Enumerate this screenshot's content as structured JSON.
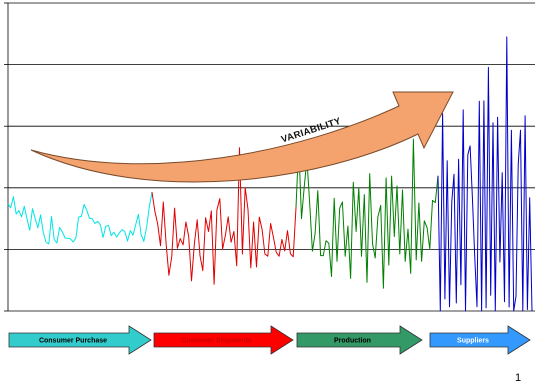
{
  "chart_data": {
    "type": "line",
    "title": "",
    "xlabel": "",
    "ylabel": "",
    "grid": true,
    "ylim": [
      0,
      100
    ],
    "arrow_label": "VARIABILITY",
    "series": [
      {
        "stage": "Consumer Purchase",
        "color": "#00e5e5",
        "values": [
          34.8,
          33.5,
          37.1,
          31.5,
          32.6,
          30.6,
          34.0,
          30.0,
          26.2,
          33.2,
          30.0,
          27.0,
          31.2,
          25.5,
          22.4,
          21.8,
          30.7,
          23.2,
          22.1,
          27.1,
          25.7,
          23.7,
          23.6,
          23.4,
          22.4,
          23.7,
          30.5,
          30.7,
          34.6,
          32.7,
          30.1,
          30.0,
          28.4,
          29.1,
          28.0,
          23.9,
          27.5,
          27.8,
          24.5,
          25.6,
          24.0,
          25.4,
          26.4,
          25.8,
          22.7,
          26.1,
          24.6,
          28.0,
          31.4,
          24.8,
          22.6,
          27.2,
          33.8,
          38.6
        ]
      },
      {
        "stage": "Customer Shipments",
        "color": "#e00000",
        "values": [
          38.6,
          32.5,
          28.4,
          21.2,
          35.4,
          21.9,
          11.6,
          17.8,
          33.4,
          20.4,
          23.5,
          21.5,
          28.9,
          24.2,
          9.8,
          21.9,
          29.6,
          18.0,
          13.1,
          30.3,
          25.8,
          32.5,
          8.7,
          32.8,
          36.5,
          20.1,
          24.6,
          30.6,
          22.3,
          25.8,
          14.7,
          53.0,
          18.5,
          40.0,
          33.0,
          14.0,
          28.9,
          14.3,
          30.5,
          26.5,
          18.5,
          17.8,
          28.4,
          24.0,
          19.1,
          17.8,
          23.2,
          19.5,
          26.1,
          18.6,
          17.6,
          33.6
        ]
      },
      {
        "stage": "Production",
        "color": "#008000",
        "values": [
          33.6,
          54.3,
          30.0,
          40.2,
          49.3,
          34.9,
          19.4,
          25.2,
          39.1,
          18.0,
          18.0,
          22.8,
          22.0,
          11.2,
          36.6,
          16.1,
          33.4,
          35.4,
          17.8,
          27.6,
          10.6,
          41.8,
          25.8,
          40.0,
          17.8,
          37.8,
          9.3,
          44.6,
          21.9,
          17.2,
          30.6,
          34.3,
          7.4,
          43.2,
          14.9,
          43.8,
          24.2,
          40.6,
          18.5,
          39.3,
          16.1,
          26.6,
          12.2,
          55.8,
          16.6,
          35.1,
          16.1,
          29.3,
          27.0,
          20.1,
          35.9,
          35.2,
          43.9
        ]
      },
      {
        "stage": "Suppliers",
        "color": "#0000c8",
        "values": [
          43.9,
          0,
          64.1,
          3.9,
          48.8,
          1.4,
          35.6,
          44.4,
          2.6,
          49.3,
          8.5,
          65.3,
          0,
          50.7,
          53.6,
          36.8,
          17.9,
          1.4,
          68.1,
          0,
          68.2,
          1.0,
          79.1,
          5.1,
          61.1,
          0,
          62.9,
          15.9,
          44.9,
          3.0,
          89.0,
          1.3,
          58.7,
          0,
          4.8,
          47.5,
          58.7,
          0,
          63.4,
          0.5,
          36.8,
          0
        ]
      }
    ]
  },
  "stages": [
    {
      "label": "Consumer Purchase",
      "fill": "#33cccc",
      "text_color": "#000000"
    },
    {
      "label": "Customer Shipments",
      "fill": "#ff0000",
      "text_color": "#cc0000"
    },
    {
      "label": "Production",
      "fill": "#339966",
      "text_color": "#000000"
    },
    {
      "label": "Suppliers",
      "fill": "#3399ff",
      "text_color": "#ffffff"
    }
  ],
  "page_number": "1"
}
